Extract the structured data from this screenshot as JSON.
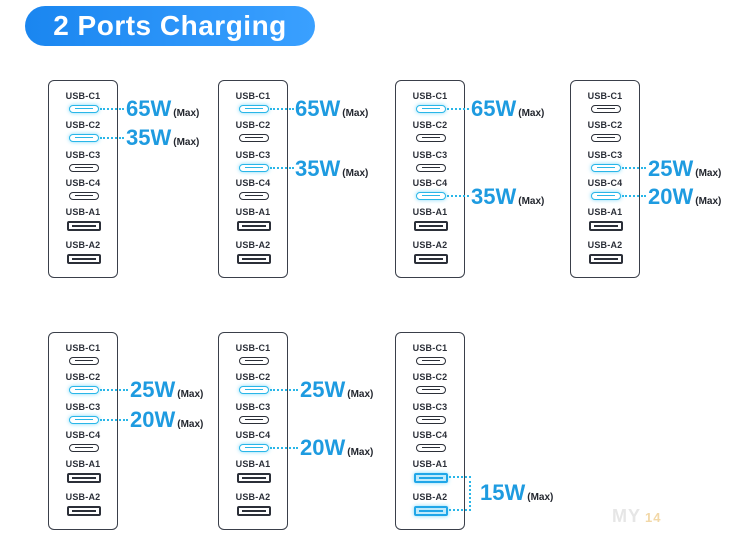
{
  "title": "2 Ports Charging",
  "max_label": "(Max)",
  "accent_color": "#1e9be0",
  "labels": [
    "USB-C1",
    "USB-C2",
    "USB-C3",
    "USB-C4",
    "USB-A1",
    "USB-A2"
  ],
  "configs": [
    {
      "active": [
        "USB-C1",
        "USB-C2"
      ],
      "outputs": [
        {
          "port": "USB-C1",
          "watts": "65W"
        },
        {
          "port": "USB-C2",
          "watts": "35W"
        }
      ]
    },
    {
      "active": [
        "USB-C1",
        "USB-C3"
      ],
      "outputs": [
        {
          "port": "USB-C1",
          "watts": "65W"
        },
        {
          "port": "USB-C3",
          "watts": "35W"
        }
      ]
    },
    {
      "active": [
        "USB-C1",
        "USB-C4"
      ],
      "outputs": [
        {
          "port": "USB-C1",
          "watts": "65W"
        },
        {
          "port": "USB-C4",
          "watts": "35W"
        }
      ]
    },
    {
      "active": [
        "USB-C3",
        "USB-C4"
      ],
      "outputs": [
        {
          "port": "USB-C3",
          "watts": "25W"
        },
        {
          "port": "USB-C4",
          "watts": "20W"
        }
      ]
    },
    {
      "active": [
        "USB-C2",
        "USB-C3"
      ],
      "outputs": [
        {
          "port": "USB-C2",
          "watts": "25W"
        },
        {
          "port": "USB-C3",
          "watts": "20W"
        }
      ]
    },
    {
      "active": [
        "USB-C2",
        "USB-C4"
      ],
      "outputs": [
        {
          "port": "USB-C2",
          "watts": "25W"
        },
        {
          "port": "USB-C4",
          "watts": "20W"
        }
      ]
    },
    {
      "active": [
        "USB-A1",
        "USB-A2"
      ],
      "outputs": [
        {
          "port": "USB-A1+USB-A2",
          "watts": "15W"
        }
      ]
    }
  ],
  "watermark": {
    "text": "MY",
    "number": "14"
  }
}
